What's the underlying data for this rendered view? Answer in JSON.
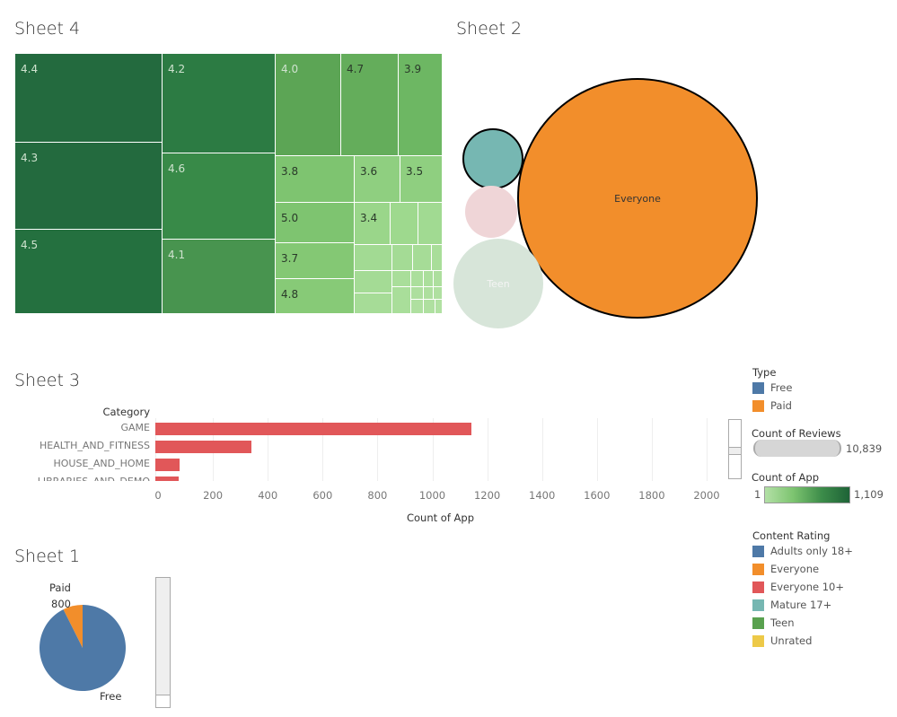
{
  "sheet4": {
    "title": "Sheet 4",
    "cells": [
      {
        "label": "4.4",
        "color": "#236a3e",
        "light": true,
        "r": [
          17,
          60,
          164,
          99
        ]
      },
      {
        "label": "4.3",
        "color": "#236a3e",
        "light": true,
        "r": [
          17,
          159,
          164,
          97
        ]
      },
      {
        "label": "4.5",
        "color": "#24703f",
        "light": true,
        "r": [
          17,
          256,
          164,
          94
        ]
      },
      {
        "label": "4.2",
        "color": "#2c7b43",
        "light": true,
        "r": [
          181,
          60,
          126,
          111
        ]
      },
      {
        "label": "4.6",
        "color": "#388a48",
        "light": true,
        "r": [
          181,
          171,
          126,
          96
        ]
      },
      {
        "label": "4.1",
        "color": "#48944f",
        "light": true,
        "r": [
          181,
          267,
          126,
          83
        ]
      },
      {
        "label": "4.0",
        "color": "#5ca555",
        "light": true,
        "r": [
          307,
          60,
          73,
          114
        ]
      },
      {
        "label": "4.7",
        "color": "#64ad5b",
        "light": false,
        "r": [
          380,
          60,
          64,
          114
        ]
      },
      {
        "label": "3.9",
        "color": "#6db763",
        "light": false,
        "r": [
          444,
          60,
          49,
          114
        ]
      },
      {
        "label": "3.8",
        "color": "#7ec470",
        "light": false,
        "r": [
          307,
          174,
          88,
          52
        ]
      },
      {
        "label": "3.6",
        "color": "#8fcf80",
        "light": false,
        "r": [
          395,
          174,
          51,
          52
        ]
      },
      {
        "label": "3.5",
        "color": "#8fcf80",
        "light": false,
        "r": [
          446,
          174,
          47,
          52
        ]
      },
      {
        "label": "5.0",
        "color": "#7ec470",
        "light": false,
        "r": [
          307,
          226,
          88,
          45
        ]
      },
      {
        "label": "3.7",
        "color": "#84c874",
        "light": false,
        "r": [
          307,
          271,
          88,
          40
        ]
      },
      {
        "label": "4.8",
        "color": "#87ca77",
        "light": false,
        "r": [
          307,
          311,
          88,
          39
        ]
      },
      {
        "label": "3.4",
        "color": "#9ad68a",
        "light": false,
        "r": [
          395,
          226,
          40,
          47
        ]
      },
      {
        "label": "",
        "color": "#9ed98e",
        "light": false,
        "r": [
          435,
          226,
          31,
          47
        ]
      },
      {
        "label": "",
        "color": "#a1da92",
        "light": false,
        "r": [
          466,
          226,
          27,
          47
        ]
      },
      {
        "label": "",
        "color": "#a2da93",
        "light": false,
        "r": [
          395,
          273,
          42,
          29
        ]
      },
      {
        "label": "",
        "color": "#a4db95",
        "light": false,
        "r": [
          437,
          273,
          23,
          29
        ]
      },
      {
        "label": "",
        "color": "#a6dc97",
        "light": false,
        "r": [
          460,
          273,
          21,
          29
        ]
      },
      {
        "label": "",
        "color": "#a9de9a",
        "light": false,
        "r": [
          481,
          273,
          12,
          29
        ]
      },
      {
        "label": "",
        "color": "#a4db95",
        "light": false,
        "r": [
          395,
          302,
          42,
          25
        ]
      },
      {
        "label": "",
        "color": "#a6dc97",
        "light": false,
        "r": [
          395,
          327,
          42,
          23
        ]
      },
      {
        "label": "",
        "color": "#a9de9a",
        "light": false,
        "r": [
          437,
          302,
          21,
          18
        ]
      },
      {
        "label": "",
        "color": "#a9de9a",
        "light": false,
        "r": [
          437,
          320,
          21,
          30
        ]
      },
      {
        "label": "",
        "color": "#abdf9c",
        "light": false,
        "r": [
          458,
          302,
          14,
          18
        ]
      },
      {
        "label": "",
        "color": "#abdf9c",
        "light": false,
        "r": [
          472,
          302,
          11,
          18
        ]
      },
      {
        "label": "",
        "color": "#addf9e",
        "light": false,
        "r": [
          483,
          302,
          10,
          18
        ]
      },
      {
        "label": "",
        "color": "#addf9e",
        "light": false,
        "r": [
          458,
          320,
          14,
          14
        ]
      },
      {
        "label": "",
        "color": "#addf9e",
        "light": false,
        "r": [
          472,
          320,
          11,
          14
        ]
      },
      {
        "label": "",
        "color": "#afe0a0",
        "light": false,
        "r": [
          483,
          320,
          10,
          14
        ]
      },
      {
        "label": "",
        "color": "#afe0a0",
        "light": false,
        "r": [
          458,
          334,
          14,
          16
        ]
      },
      {
        "label": "",
        "color": "#afe0a0",
        "light": false,
        "r": [
          472,
          334,
          13,
          16
        ]
      },
      {
        "label": "",
        "color": "#b1e1a2",
        "light": false,
        "r": [
          485,
          334,
          8,
          16
        ]
      }
    ]
  },
  "sheet2": {
    "title": "Sheet 2",
    "bubbles": [
      {
        "label": "Everyone",
        "color": "#f28e2b",
        "outline": true,
        "c": [
          710,
          221,
          133
        ],
        "text": "#333"
      },
      {
        "label": "",
        "color": "#76b7b2",
        "outline": true,
        "c": [
          549,
          177,
          33
        ],
        "text": "#333"
      },
      {
        "label": "",
        "color": "#efd5d7",
        "outline": false,
        "c": [
          547,
          236,
          29
        ],
        "text": "#333"
      },
      {
        "label": "Teen",
        "color": "#d7e5d9",
        "outline": false,
        "c": [
          555,
          316,
          50
        ],
        "text": "#f4f4f4"
      }
    ]
  },
  "sheet3": {
    "title": "Sheet 3",
    "category_header": "Category",
    "xlabel": "Count of App",
    "chart_data": {
      "type": "bar",
      "orientation": "horizontal",
      "categories": [
        "GAME",
        "HEALTH_AND_FITNESS",
        "HOUSE_AND_HOME",
        "LIBRARIES_AND_DEMO"
      ],
      "values": [
        1144,
        341,
        80,
        75
      ],
      "xlim": [
        0,
        2000
      ],
      "ticks": [
        "0",
        "200",
        "400",
        "600",
        "800",
        "1000",
        "1200",
        "1400",
        "1600",
        "1800",
        "2000"
      ],
      "xlabel": "Count of App",
      "ylabel": "Category",
      "color": "#e15759",
      "grid": true
    }
  },
  "sheet1": {
    "title": "Sheet 1",
    "chart_data": {
      "type": "pie",
      "slices": [
        {
          "label": "Free",
          "value": 10039,
          "color": "#4e79a7"
        },
        {
          "label": "Paid",
          "value": 800,
          "color": "#f28e2b"
        }
      ]
    },
    "paid_label": "Paid",
    "paid_value": "800",
    "free_label": "Free"
  },
  "legends": {
    "type": {
      "title": "Type",
      "items": [
        {
          "label": "Free",
          "color": "#4e79a7"
        },
        {
          "label": "Paid",
          "color": "#f28e2b"
        }
      ]
    },
    "reviews": {
      "title": "Count of Reviews",
      "max": "10,839"
    },
    "count_app": {
      "title": "Count of App",
      "min": "1",
      "max": "1,109"
    },
    "content": {
      "title": "Content Rating",
      "items": [
        {
          "label": "Adults only 18+",
          "color": "#4e79a7"
        },
        {
          "label": "Everyone",
          "color": "#f28e2b"
        },
        {
          "label": "Everyone 10+",
          "color": "#e15759"
        },
        {
          "label": "Mature 17+",
          "color": "#76b7b2"
        },
        {
          "label": "Teen",
          "color": "#59a14f"
        },
        {
          "label": "Unrated",
          "color": "#edc948"
        }
      ]
    }
  }
}
